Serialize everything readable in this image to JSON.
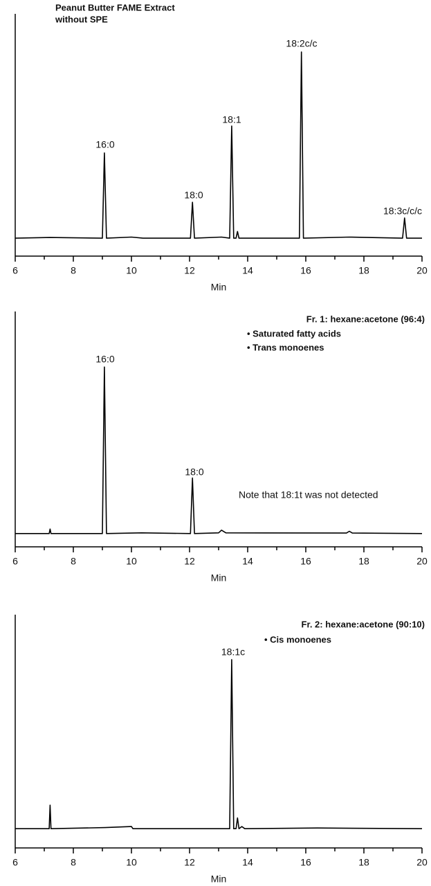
{
  "chart_data": [
    {
      "type": "line",
      "title": [
        "Peanut Butter FAME Extract",
        "without SPE"
      ],
      "peak_labels": [
        "16:0",
        "18:0",
        "18:1",
        "18:2c/c",
        "18:3c/c/c"
      ],
      "xlabel": "Min",
      "xlim": [
        6,
        20
      ],
      "xticks": [
        6,
        8,
        10,
        12,
        14,
        16,
        18,
        20
      ],
      "ylim": [
        -8,
        100
      ],
      "color": "#000000",
      "x": [
        6,
        7.2,
        9.0,
        9.07,
        9.14,
        10,
        10.4,
        12.03,
        12.1,
        12.17,
        13.1,
        13.38,
        13.45,
        13.52,
        13.6,
        13.65,
        13.7,
        15.78,
        15.85,
        15.92,
        17.5,
        19.33,
        19.4,
        19.47,
        20
      ],
      "values": [
        0,
        0.3,
        0,
        38,
        0,
        0.5,
        0,
        0,
        16,
        0,
        0.5,
        0,
        50,
        0,
        0,
        3,
        0,
        0,
        83,
        0,
        0.5,
        0,
        9,
        0,
        0
      ]
    },
    {
      "type": "line",
      "title": [
        "Fr. 1: hexane:acetone (96:4)",
        "• Saturated fatty acids",
        "• Trans monoenes"
      ],
      "peak_labels": [
        "16:0",
        "18:0"
      ],
      "note": "Note that 18:1t was not detected",
      "xlabel": "Min",
      "xlim": [
        6,
        20
      ],
      "xticks": [
        6,
        8,
        10,
        12,
        14,
        16,
        18,
        20
      ],
      "ylim": [
        -6,
        100
      ],
      "color": "#000000",
      "x": [
        6,
        7.17,
        7.2,
        7.23,
        9.0,
        9.07,
        9.14,
        10.35,
        12.03,
        12.1,
        12.17,
        13.0,
        13.1,
        13.25,
        17.4,
        17.5,
        17.6,
        20
      ],
      "values": [
        0,
        0,
        2,
        0,
        0,
        75,
        0,
        0.3,
        0,
        25,
        0,
        0.3,
        1.5,
        0.3,
        0.2,
        1,
        0.2,
        0
      ]
    },
    {
      "type": "line",
      "title": [
        "Fr. 2: hexane:acetone (90:10)",
        "• Cis monoenes"
      ],
      "peak_labels": [
        "18:1c"
      ],
      "xlabel": "Min",
      "xlim": [
        6,
        20
      ],
      "xticks": [
        6,
        8,
        10,
        12,
        14,
        16,
        18,
        20
      ],
      "ylim": [
        -9,
        100
      ],
      "color": "#000000",
      "x": [
        6,
        7.17,
        7.2,
        7.23,
        9.1,
        10,
        10.05,
        13.38,
        13.45,
        13.52,
        13.6,
        13.65,
        13.7,
        13.8,
        13.9,
        16.4,
        20
      ],
      "values": [
        0,
        0,
        11,
        0,
        0.5,
        1,
        0,
        0,
        79,
        0,
        0,
        5,
        0,
        1,
        0,
        0.3,
        0
      ]
    }
  ]
}
